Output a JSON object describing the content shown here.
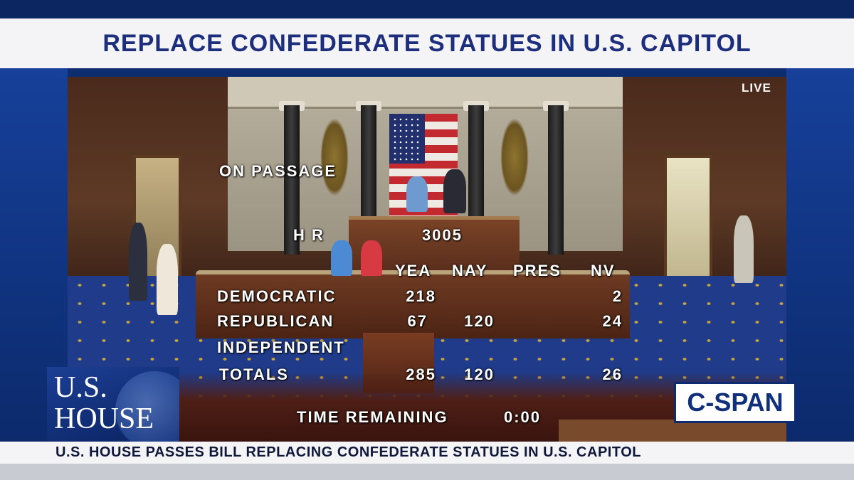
{
  "headline": "REPLACE CONFEDERATE STATUES IN U.S. CAPITOL",
  "live_badge": "LIVE",
  "vote": {
    "motion": "ON PASSAGE",
    "bill_prefix": "H R",
    "bill_number": "3005",
    "columns": [
      "YEA",
      "NAY",
      "PRES",
      "NV"
    ],
    "rows": [
      {
        "party": "DEMOCRATIC",
        "yea": "218",
        "nay": "",
        "pres": "",
        "nv": "2"
      },
      {
        "party": "REPUBLICAN",
        "yea": "67",
        "nay": "120",
        "pres": "",
        "nv": "24"
      },
      {
        "party": "INDEPENDENT",
        "yea": "",
        "nay": "",
        "pres": "",
        "nv": ""
      },
      {
        "party": "TOTALS",
        "yea": "285",
        "nay": "120",
        "pres": "",
        "nv": "26"
      }
    ],
    "time_label": "TIME REMAINING",
    "time_value": "0:00"
  },
  "house_logo": {
    "line1": "U.S.",
    "line2": "HOUSE"
  },
  "network_logo": "C-SPAN",
  "ticker": "U.S. HOUSE PASSES BILL REPLACING CONFEDERATE STATUES IN U.S. CAPITOL"
}
